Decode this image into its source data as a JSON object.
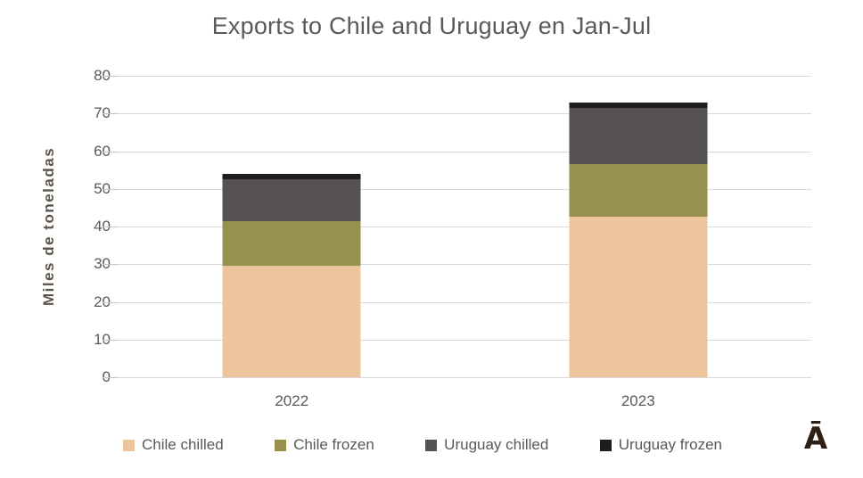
{
  "title": "Exports to Chile and Uruguay en Jan-Jul",
  "logo": {
    "glyph": "Ā"
  },
  "colors": {
    "background": "#FFFFFF",
    "title_text": "#595959",
    "axis_text": "#595959",
    "y_axis_title_text": "#5C5349",
    "gridline": "#D9D9D9",
    "tick_mark": "#C6C6C6",
    "logo": "#2E1E14"
  },
  "chart_data": {
    "type": "bar",
    "stacked": true,
    "title": "Exports to Chile and Uruguay en Jan-Jul",
    "xlabel": "",
    "ylabel": "Miles de toneladas",
    "categories": [
      "2022",
      "2023"
    ],
    "series": [
      {
        "name": "Chile chilled",
        "color": "#EDC59C",
        "values": [
          29.5,
          42.5
        ]
      },
      {
        "name": "Chile frozen",
        "color": "#98914E",
        "values": [
          12.0,
          14.0
        ]
      },
      {
        "name": "Uruguay chilled",
        "color": "#565253",
        "values": [
          11.0,
          15.0
        ]
      },
      {
        "name": "Uruguay frozen",
        "color": "#1E1D1E",
        "values": [
          1.5,
          1.5
        ]
      }
    ],
    "totals": [
      54,
      73
    ],
    "ylim": [
      0,
      80
    ],
    "yticks": [
      0,
      10,
      20,
      30,
      40,
      50,
      60,
      70,
      80
    ],
    "grid": true,
    "legend_position": "bottom"
  }
}
